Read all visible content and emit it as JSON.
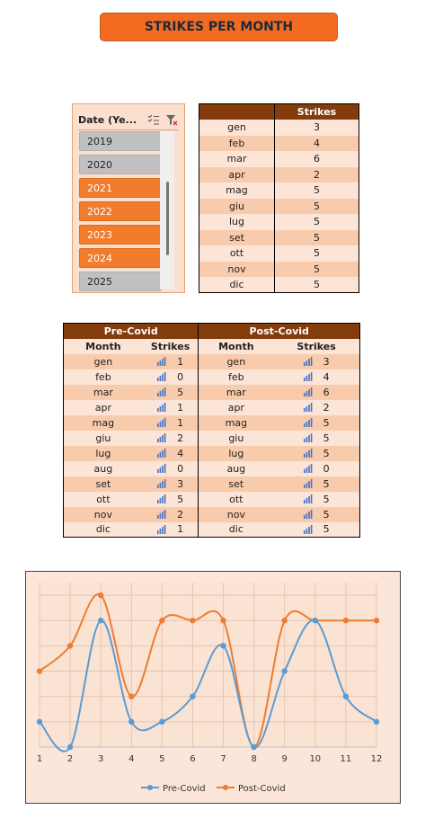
{
  "title": "STRIKES PER MONTH",
  "slicer": {
    "header": "Date (Ye...",
    "multi_select_icon": "multi-select-icon",
    "clear_filter_icon": "clear-filter-icon",
    "items": [
      {
        "label": "2019",
        "selected": false
      },
      {
        "label": "2020",
        "selected": false
      },
      {
        "label": "2021",
        "selected": true
      },
      {
        "label": "2022",
        "selected": true
      },
      {
        "label": "2023",
        "selected": true
      },
      {
        "label": "2024",
        "selected": true
      },
      {
        "label": "2025",
        "selected": false
      }
    ]
  },
  "monthly_table": {
    "header": "Strikes",
    "rows": [
      {
        "month": "gen",
        "strikes": "3"
      },
      {
        "month": "feb",
        "strikes": "4"
      },
      {
        "month": "mar",
        "strikes": "6"
      },
      {
        "month": "apr",
        "strikes": "2"
      },
      {
        "month": "mag",
        "strikes": "5"
      },
      {
        "month": "giu",
        "strikes": "5"
      },
      {
        "month": "lug",
        "strikes": "5"
      },
      {
        "month": "set",
        "strikes": "5"
      },
      {
        "month": "ott",
        "strikes": "5"
      },
      {
        "month": "nov",
        "strikes": "5"
      },
      {
        "month": "dic",
        "strikes": "5"
      }
    ]
  },
  "covid_table": {
    "pre_label": "Pre-Covid",
    "post_label": "Post-Covid",
    "col_month": "Month",
    "col_strikes": "Strikes",
    "rows": [
      {
        "month": "gen",
        "pre": "1",
        "post": "3"
      },
      {
        "month": "feb",
        "pre": "0",
        "post": "4"
      },
      {
        "month": "mar",
        "pre": "5",
        "post": "6"
      },
      {
        "month": "apr",
        "pre": "1",
        "post": "2"
      },
      {
        "month": "mag",
        "pre": "1",
        "post": "5"
      },
      {
        "month": "giu",
        "pre": "2",
        "post": "5"
      },
      {
        "month": "lug",
        "pre": "4",
        "post": "5"
      },
      {
        "month": "aug",
        "pre": "0",
        "post": "0"
      },
      {
        "month": "set",
        "pre": "3",
        "post": "5"
      },
      {
        "month": "ott",
        "pre": "5",
        "post": "5"
      },
      {
        "month": "nov",
        "pre": "2",
        "post": "5"
      },
      {
        "month": "dic",
        "pre": "1",
        "post": "5"
      }
    ]
  },
  "colors": {
    "accent": "#f26b21",
    "header_brown": "#843c0c",
    "pre_covid": "#5b9bd5",
    "post_covid": "#ed7d31"
  },
  "chart_data": {
    "type": "line",
    "x": [
      1,
      2,
      3,
      4,
      5,
      6,
      7,
      8,
      9,
      10,
      11,
      12
    ],
    "series": [
      {
        "name": "Pre-Covid",
        "values": [
          1,
          0,
          5,
          1,
          1,
          2,
          4,
          0,
          3,
          5,
          2,
          1
        ]
      },
      {
        "name": "Post-Covid",
        "values": [
          3,
          4,
          6,
          2,
          5,
          5,
          5,
          0,
          5,
          5,
          5,
          5
        ]
      }
    ],
    "ylim": [
      0,
      6.5
    ],
    "grid": true,
    "legend": "bottom",
    "title": "",
    "xlabel": "",
    "ylabel": ""
  }
}
